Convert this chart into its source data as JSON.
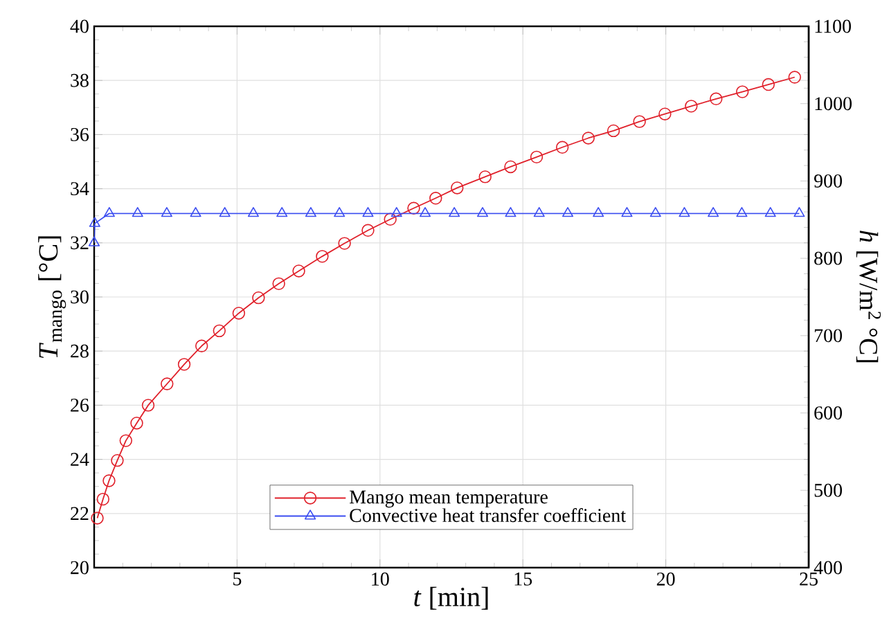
{
  "chart_data": {
    "type": "line",
    "xlabel": "*t* [min]",
    "ylabel": "*T*$_{mango}$ [°C]",
    "y2label": "*h* [W/m$^{2}$ °C]",
    "xlim": [
      0,
      25
    ],
    "xticks": [
      {
        "value": 0,
        "label": null
      },
      5,
      10,
      15,
      20,
      25
    ],
    "ylim": [
      20,
      40
    ],
    "yticks": [
      20,
      22,
      24,
      26,
      28,
      30,
      32,
      34,
      36,
      38,
      40
    ],
    "y2lim": [
      400,
      1100
    ],
    "y2ticks": [
      400,
      500,
      600,
      700,
      800,
      900,
      1000,
      1100
    ],
    "grid": true,
    "legend": "bottom",
    "line_style": "solid",
    "series": [
      {
        "name": "Mango mean temperature",
        "color": "#e0202a",
        "marker": "circle",
        "axis": "y",
        "x": [
          0.11,
          0.31,
          0.52,
          0.81,
          1.11,
          1.49,
          1.89,
          2.55,
          3.15,
          3.76,
          4.38,
          5.06,
          5.75,
          6.46,
          7.16,
          7.98,
          8.76,
          9.58,
          10.36,
          11.18,
          11.95,
          12.7,
          13.68,
          14.57,
          15.48,
          16.38,
          17.29,
          18.17,
          19.08,
          19.97,
          20.89,
          21.76,
          22.68,
          23.59,
          24.51
        ],
        "values": [
          21.83,
          22.53,
          23.21,
          23.96,
          24.69,
          25.34,
          26.0,
          26.79,
          27.51,
          28.19,
          28.75,
          29.4,
          29.97,
          30.49,
          30.96,
          31.5,
          31.98,
          32.46,
          32.87,
          33.28,
          33.65,
          34.03,
          34.44,
          34.81,
          35.17,
          35.53,
          35.87,
          36.14,
          36.48,
          36.76,
          37.05,
          37.32,
          37.58,
          37.85,
          38.12
        ]
      },
      {
        "name": "Convective heat transfer coefficient",
        "color": "#3a4cf0",
        "marker": "triangle",
        "axis": "y2",
        "x": [
          0,
          0.02,
          0.53,
          1.52,
          2.54,
          3.55,
          4.57,
          5.57,
          6.57,
          7.58,
          8.58,
          9.58,
          10.58,
          11.58,
          12.6,
          13.59,
          14.57,
          15.57,
          16.57,
          17.64,
          18.64,
          19.64,
          20.65,
          21.66,
          22.66,
          23.66,
          24.67
        ],
        "values": [
          820,
          845,
          858,
          858,
          858,
          858,
          858,
          858,
          858,
          858,
          858,
          858,
          858,
          858,
          858,
          858,
          858,
          858,
          858,
          858,
          858,
          858,
          858,
          858,
          858,
          858,
          858
        ]
      }
    ]
  }
}
